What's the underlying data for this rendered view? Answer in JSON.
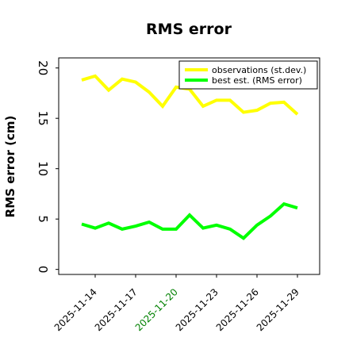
{
  "chart_data": {
    "type": "line",
    "title": "RMS error",
    "xlabel": "",
    "ylabel": "RMS error (cm)",
    "x": [
      "2025-11-13",
      "2025-11-14",
      "2025-11-15",
      "2025-11-16",
      "2025-11-17",
      "2025-11-18",
      "2025-11-19",
      "2025-11-20",
      "2025-11-21",
      "2025-11-22",
      "2025-11-23",
      "2025-11-24",
      "2025-11-25",
      "2025-11-26",
      "2025-11-27",
      "2025-11-28",
      "2025-11-29"
    ],
    "xticks": [
      "2025-11-14",
      "2025-11-17",
      "2025-11-20",
      "2025-11-23",
      "2025-11-26",
      "2025-11-29"
    ],
    "xtick_colors": [
      "#000000",
      "#000000",
      "#008000",
      "#000000",
      "#000000",
      "#000000"
    ],
    "ylim": [
      -0.5,
      21
    ],
    "yticks": [
      0,
      5,
      10,
      15,
      20
    ],
    "grid": false,
    "legend_position": "top-right",
    "series": [
      {
        "name": "observations (st.dev.)",
        "color": "#ffff00",
        "values": [
          18.8,
          19.2,
          17.8,
          18.9,
          18.6,
          17.6,
          16.2,
          18.1,
          17.9,
          16.2,
          16.8,
          16.8,
          15.6,
          15.8,
          16.5,
          16.6,
          15.4
        ]
      },
      {
        "name": "best est. (RMS error)",
        "color": "#00ff00",
        "values": [
          4.5,
          4.1,
          4.6,
          4.0,
          4.3,
          4.7,
          4.0,
          4.0,
          5.4,
          4.1,
          4.4,
          4.0,
          3.1,
          4.4,
          5.3,
          6.5,
          6.1
        ]
      }
    ]
  }
}
